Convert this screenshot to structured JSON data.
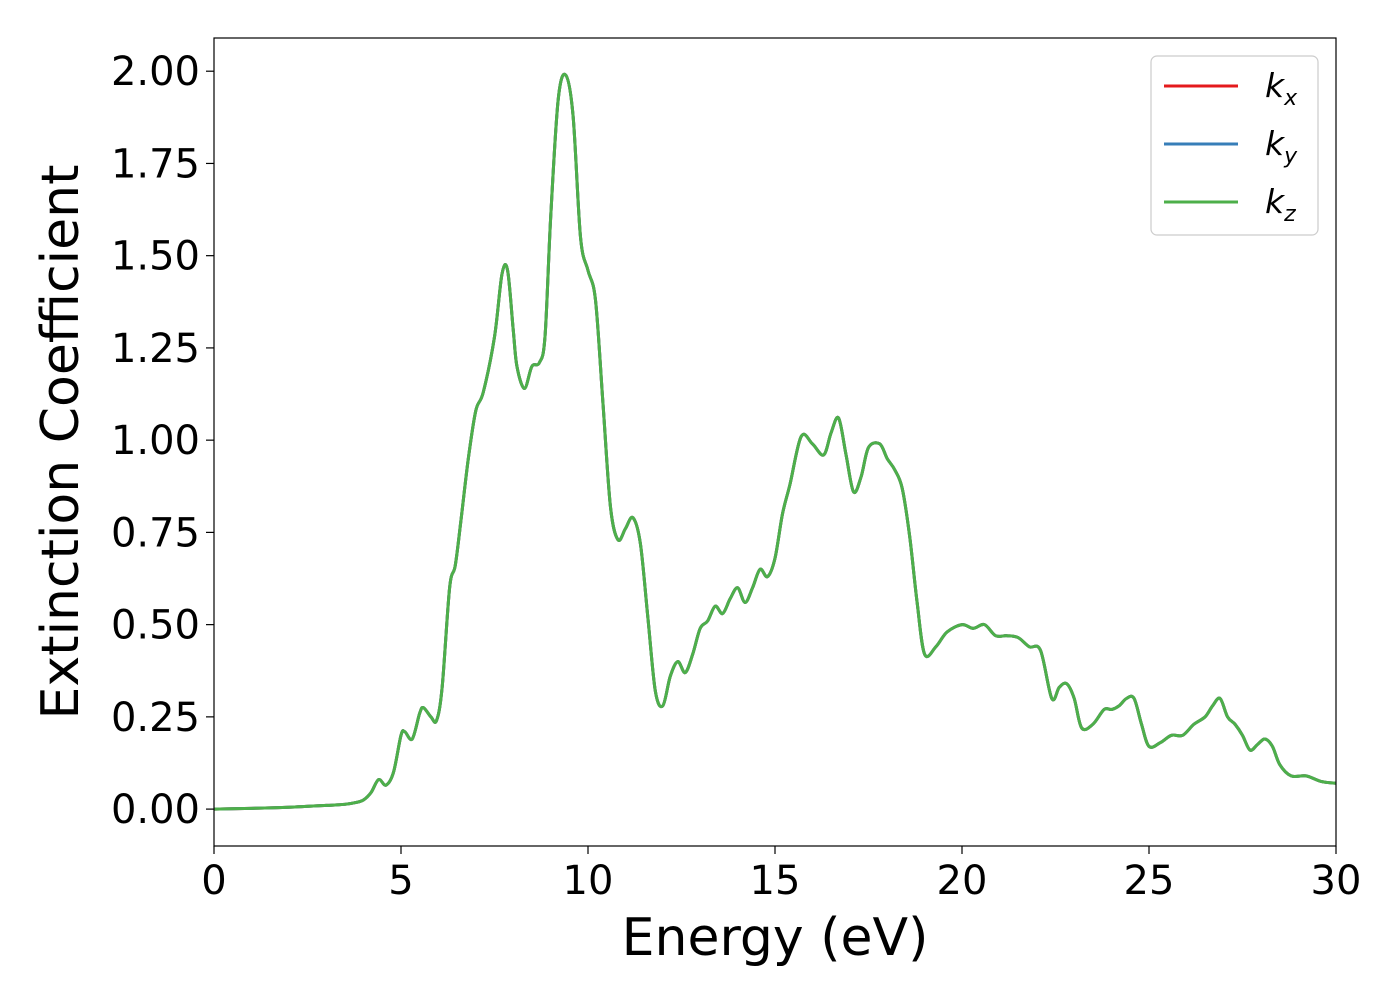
{
  "chart_data": {
    "type": "line",
    "title": "",
    "xlabel": "Energy (eV)",
    "ylabel": "Extinction Coefficient",
    "xlim": [
      0,
      30
    ],
    "ylim": [
      -0.1,
      2.09
    ],
    "xticks": [
      "0",
      "5",
      "10",
      "15",
      "20",
      "25",
      "30"
    ],
    "yticks": [
      "0.00",
      "0.25",
      "0.50",
      "0.75",
      "1.00",
      "1.25",
      "1.50",
      "1.75",
      "2.00"
    ],
    "grid": false,
    "legend_position": "top-right",
    "series": [
      {
        "name": "k",
        "subscript": "x",
        "color": "#e41a1c",
        "x": [
          0,
          1,
          2,
          3,
          3.5,
          3.8,
          4.0,
          4.2,
          4.4,
          4.6,
          4.8,
          5.0,
          5.1,
          5.3,
          5.5,
          5.6,
          5.8,
          5.95,
          6.1,
          6.3,
          6.45,
          6.6,
          6.8,
          7.0,
          7.2,
          7.5,
          7.7,
          7.85,
          8.0,
          8.1,
          8.3,
          8.5,
          8.7,
          8.85,
          9.0,
          9.2,
          9.4,
          9.6,
          9.8,
          10.0,
          10.2,
          10.4,
          10.6,
          10.8,
          11.0,
          11.2,
          11.4,
          11.6,
          11.8,
          12.0,
          12.2,
          12.4,
          12.6,
          12.8,
          13.0,
          13.2,
          13.4,
          13.6,
          13.8,
          14.0,
          14.2,
          14.4,
          14.6,
          14.8,
          15.0,
          15.2,
          15.4,
          15.7,
          16.0,
          16.3,
          16.5,
          16.7,
          16.9,
          17.1,
          17.3,
          17.5,
          17.8,
          18.0,
          18.2,
          18.4,
          18.6,
          18.8,
          19.0,
          19.3,
          19.6,
          20.0,
          20.3,
          20.6,
          20.9,
          21.2,
          21.5,
          21.8,
          22.1,
          22.4,
          22.6,
          22.8,
          23.0,
          23.2,
          23.5,
          23.8,
          24.0,
          24.2,
          24.4,
          24.6,
          24.8,
          25.0,
          25.3,
          25.6,
          25.9,
          26.2,
          26.5,
          26.7,
          26.9,
          27.1,
          27.3,
          27.5,
          27.7,
          27.9,
          28.1,
          28.3,
          28.5,
          28.8,
          29.2,
          29.6,
          30.0
        ],
        "y": [
          0.0,
          0.002,
          0.005,
          0.01,
          0.013,
          0.018,
          0.025,
          0.045,
          0.08,
          0.065,
          0.1,
          0.2,
          0.21,
          0.19,
          0.26,
          0.275,
          0.25,
          0.24,
          0.33,
          0.6,
          0.66,
          0.78,
          0.95,
          1.08,
          1.13,
          1.28,
          1.45,
          1.46,
          1.3,
          1.2,
          1.14,
          1.2,
          1.21,
          1.28,
          1.6,
          1.92,
          1.99,
          1.88,
          1.55,
          1.46,
          1.38,
          1.1,
          0.82,
          0.73,
          0.76,
          0.79,
          0.72,
          0.52,
          0.32,
          0.28,
          0.36,
          0.4,
          0.37,
          0.42,
          0.49,
          0.51,
          0.55,
          0.53,
          0.57,
          0.6,
          0.56,
          0.6,
          0.65,
          0.63,
          0.68,
          0.8,
          0.88,
          1.01,
          0.99,
          0.96,
          1.02,
          1.06,
          0.96,
          0.86,
          0.9,
          0.98,
          0.99,
          0.95,
          0.92,
          0.87,
          0.74,
          0.56,
          0.42,
          0.44,
          0.48,
          0.5,
          0.49,
          0.5,
          0.47,
          0.47,
          0.465,
          0.44,
          0.43,
          0.3,
          0.33,
          0.34,
          0.3,
          0.22,
          0.23,
          0.27,
          0.27,
          0.28,
          0.3,
          0.3,
          0.23,
          0.17,
          0.18,
          0.2,
          0.2,
          0.23,
          0.25,
          0.28,
          0.3,
          0.25,
          0.23,
          0.2,
          0.16,
          0.175,
          0.19,
          0.17,
          0.12,
          0.09,
          0.09,
          0.075,
          0.07
        ]
      },
      {
        "name": "k",
        "subscript": "y",
        "color": "#377eb8",
        "x": [
          0,
          1,
          2,
          3,
          3.5,
          3.8,
          4.0,
          4.2,
          4.4,
          4.6,
          4.8,
          5.0,
          5.1,
          5.3,
          5.5,
          5.6,
          5.8,
          5.95,
          6.1,
          6.3,
          6.45,
          6.6,
          6.8,
          7.0,
          7.2,
          7.5,
          7.7,
          7.85,
          8.0,
          8.1,
          8.3,
          8.5,
          8.7,
          8.85,
          9.0,
          9.2,
          9.4,
          9.6,
          9.8,
          10.0,
          10.2,
          10.4,
          10.6,
          10.8,
          11.0,
          11.2,
          11.4,
          11.6,
          11.8,
          12.0,
          12.2,
          12.4,
          12.6,
          12.8,
          13.0,
          13.2,
          13.4,
          13.6,
          13.8,
          14.0,
          14.2,
          14.4,
          14.6,
          14.8,
          15.0,
          15.2,
          15.4,
          15.7,
          16.0,
          16.3,
          16.5,
          16.7,
          16.9,
          17.1,
          17.3,
          17.5,
          17.8,
          18.0,
          18.2,
          18.4,
          18.6,
          18.8,
          19.0,
          19.3,
          19.6,
          20.0,
          20.3,
          20.6,
          20.9,
          21.2,
          21.5,
          21.8,
          22.1,
          22.4,
          22.6,
          22.8,
          23.0,
          23.2,
          23.5,
          23.8,
          24.0,
          24.2,
          24.4,
          24.6,
          24.8,
          25.0,
          25.3,
          25.6,
          25.9,
          26.2,
          26.5,
          26.7,
          26.9,
          27.1,
          27.3,
          27.5,
          27.7,
          27.9,
          28.1,
          28.3,
          28.5,
          28.8,
          29.2,
          29.6,
          30.0
        ],
        "y": [
          0.0,
          0.002,
          0.005,
          0.01,
          0.013,
          0.018,
          0.025,
          0.045,
          0.08,
          0.065,
          0.1,
          0.2,
          0.21,
          0.19,
          0.26,
          0.275,
          0.25,
          0.24,
          0.33,
          0.6,
          0.66,
          0.78,
          0.95,
          1.08,
          1.13,
          1.28,
          1.45,
          1.46,
          1.3,
          1.2,
          1.14,
          1.2,
          1.21,
          1.28,
          1.6,
          1.92,
          1.99,
          1.88,
          1.55,
          1.46,
          1.38,
          1.1,
          0.82,
          0.73,
          0.76,
          0.79,
          0.72,
          0.52,
          0.32,
          0.28,
          0.36,
          0.4,
          0.37,
          0.42,
          0.49,
          0.51,
          0.55,
          0.53,
          0.57,
          0.6,
          0.56,
          0.6,
          0.65,
          0.63,
          0.68,
          0.8,
          0.88,
          1.01,
          0.99,
          0.96,
          1.02,
          1.06,
          0.96,
          0.86,
          0.9,
          0.98,
          0.99,
          0.95,
          0.92,
          0.87,
          0.74,
          0.56,
          0.42,
          0.44,
          0.48,
          0.5,
          0.49,
          0.5,
          0.47,
          0.47,
          0.465,
          0.44,
          0.43,
          0.3,
          0.33,
          0.34,
          0.3,
          0.22,
          0.23,
          0.27,
          0.27,
          0.28,
          0.3,
          0.3,
          0.23,
          0.17,
          0.18,
          0.2,
          0.2,
          0.23,
          0.25,
          0.28,
          0.3,
          0.25,
          0.23,
          0.2,
          0.16,
          0.175,
          0.19,
          0.17,
          0.12,
          0.09,
          0.09,
          0.075,
          0.07
        ]
      },
      {
        "name": "k",
        "subscript": "z",
        "color": "#4daf4a",
        "x": [
          0,
          1,
          2,
          3,
          3.5,
          3.8,
          4.0,
          4.2,
          4.4,
          4.6,
          4.8,
          5.0,
          5.1,
          5.3,
          5.5,
          5.6,
          5.8,
          5.95,
          6.1,
          6.3,
          6.45,
          6.6,
          6.8,
          7.0,
          7.2,
          7.5,
          7.7,
          7.85,
          8.0,
          8.1,
          8.3,
          8.5,
          8.7,
          8.85,
          9.0,
          9.2,
          9.4,
          9.6,
          9.8,
          10.0,
          10.2,
          10.4,
          10.6,
          10.8,
          11.0,
          11.2,
          11.4,
          11.6,
          11.8,
          12.0,
          12.2,
          12.4,
          12.6,
          12.8,
          13.0,
          13.2,
          13.4,
          13.6,
          13.8,
          14.0,
          14.2,
          14.4,
          14.6,
          14.8,
          15.0,
          15.2,
          15.4,
          15.7,
          16.0,
          16.3,
          16.5,
          16.7,
          16.9,
          17.1,
          17.3,
          17.5,
          17.8,
          18.0,
          18.2,
          18.4,
          18.6,
          18.8,
          19.0,
          19.3,
          19.6,
          20.0,
          20.3,
          20.6,
          20.9,
          21.2,
          21.5,
          21.8,
          22.1,
          22.4,
          22.6,
          22.8,
          23.0,
          23.2,
          23.5,
          23.8,
          24.0,
          24.2,
          24.4,
          24.6,
          24.8,
          25.0,
          25.3,
          25.6,
          25.9,
          26.2,
          26.5,
          26.7,
          26.9,
          27.1,
          27.3,
          27.5,
          27.7,
          27.9,
          28.1,
          28.3,
          28.5,
          28.8,
          29.2,
          29.6,
          30.0
        ],
        "y": [
          0.0,
          0.002,
          0.005,
          0.01,
          0.013,
          0.018,
          0.025,
          0.045,
          0.08,
          0.065,
          0.1,
          0.2,
          0.21,
          0.19,
          0.26,
          0.275,
          0.25,
          0.24,
          0.33,
          0.6,
          0.66,
          0.78,
          0.95,
          1.08,
          1.13,
          1.28,
          1.45,
          1.46,
          1.3,
          1.2,
          1.14,
          1.2,
          1.21,
          1.28,
          1.6,
          1.92,
          1.99,
          1.88,
          1.55,
          1.46,
          1.38,
          1.1,
          0.82,
          0.73,
          0.76,
          0.79,
          0.72,
          0.52,
          0.32,
          0.28,
          0.36,
          0.4,
          0.37,
          0.42,
          0.49,
          0.51,
          0.55,
          0.53,
          0.57,
          0.6,
          0.56,
          0.6,
          0.65,
          0.63,
          0.68,
          0.8,
          0.88,
          1.01,
          0.99,
          0.96,
          1.02,
          1.06,
          0.96,
          0.86,
          0.9,
          0.98,
          0.99,
          0.95,
          0.92,
          0.87,
          0.74,
          0.56,
          0.42,
          0.44,
          0.48,
          0.5,
          0.49,
          0.5,
          0.47,
          0.47,
          0.465,
          0.44,
          0.43,
          0.3,
          0.33,
          0.34,
          0.3,
          0.22,
          0.23,
          0.27,
          0.27,
          0.28,
          0.3,
          0.3,
          0.23,
          0.17,
          0.18,
          0.2,
          0.2,
          0.23,
          0.25,
          0.28,
          0.3,
          0.25,
          0.23,
          0.2,
          0.16,
          0.175,
          0.19,
          0.17,
          0.12,
          0.09,
          0.09,
          0.075,
          0.07
        ]
      }
    ]
  }
}
